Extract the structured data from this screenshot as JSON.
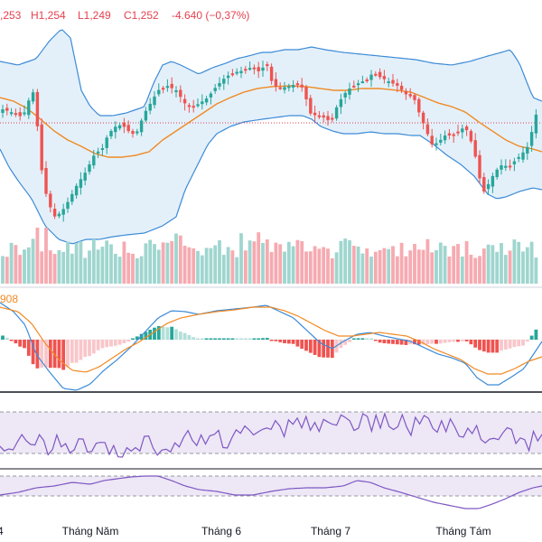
{
  "legend": {
    "open": ",253",
    "high": "H1,254",
    "low": "L1,249",
    "close": "C1,252",
    "change": "-4.640 (−0,37%)",
    "macd_value": "908"
  },
  "chart_data": [
    {
      "type": "candlestick",
      "name": "price",
      "x_labels": [
        "4",
        "Tháng Năm",
        "Tháng 6",
        "Tháng 7",
        "Tháng Tám"
      ],
      "bollinger_bands": true,
      "moving_average": true,
      "reference_line": "dotted red"
    },
    {
      "type": "bar",
      "name": "volume"
    },
    {
      "type": "line",
      "name": "macd",
      "histogram": true,
      "lines": 2
    },
    {
      "type": "line",
      "name": "oscillator_1",
      "band": true
    },
    {
      "type": "line",
      "name": "oscillator_2",
      "band": true
    }
  ],
  "colors": {
    "up": "#26a69a",
    "down": "#ef5350",
    "vol_up": "#9fd6cf",
    "vol_down": "#f6aab0",
    "band_line": "#3d8bd6",
    "band_fill": "#e3f0fa",
    "ma": "#f08a24",
    "macd_line": "#3d8bd6",
    "signal_line": "#f08a24",
    "hist_up": "#26a69a",
    "hist_up_light": "#b2dfd9",
    "hist_down": "#ef5350",
    "hist_down_light": "#f8c6ca",
    "osc_line": "#7e57c2",
    "osc_fill": "#ede7f6"
  }
}
